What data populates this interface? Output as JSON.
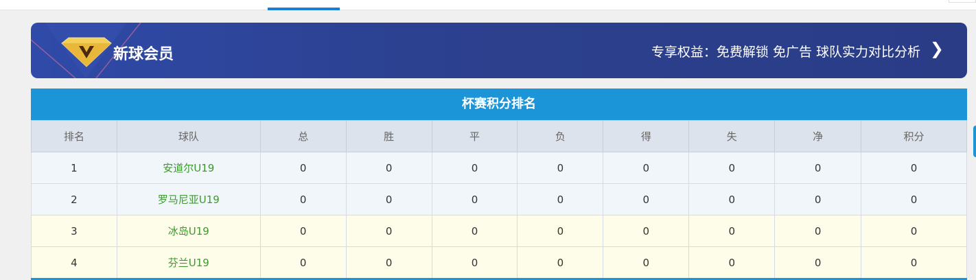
{
  "vip": {
    "title": "新球会员",
    "benefits": "专享权益：免费解锁 免广告 球队实力对比分析",
    "chevron_icon": "chevron-right-icon",
    "accent": "#2c4190"
  },
  "table": {
    "title": "杯赛积分排名",
    "headers": [
      "排名",
      "球队",
      "总",
      "胜",
      "平",
      "负",
      "得",
      "失",
      "净",
      "积分"
    ],
    "rows": [
      [
        "1",
        "安道尔U19",
        "0",
        "0",
        "0",
        "0",
        "0",
        "0",
        "0",
        "0"
      ],
      [
        "2",
        "罗马尼亚U19",
        "0",
        "0",
        "0",
        "0",
        "0",
        "0",
        "0",
        "0"
      ],
      [
        "3",
        "冰岛U19",
        "0",
        "0",
        "0",
        "0",
        "0",
        "0",
        "0",
        "0"
      ],
      [
        "4",
        "芬兰U19",
        "0",
        "0",
        "0",
        "0",
        "0",
        "0",
        "0",
        "0"
      ]
    ]
  }
}
